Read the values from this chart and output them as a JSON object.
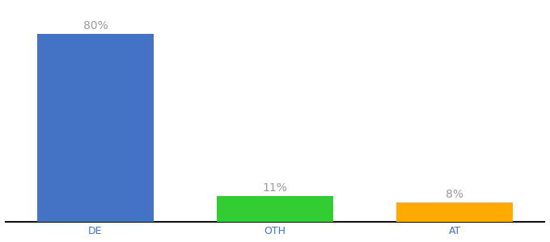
{
  "categories": [
    "DE",
    "OTH",
    "AT"
  ],
  "values": [
    80,
    11,
    8
  ],
  "bar_colors": [
    "#4472c4",
    "#33cc33",
    "#ffaa00"
  ],
  "labels": [
    "80%",
    "11%",
    "8%"
  ],
  "background_color": "#ffffff",
  "label_color": "#999999",
  "label_fontsize": 10,
  "tick_fontsize": 9,
  "bar_width": 0.65,
  "ylim": [
    0,
    92
  ],
  "xlim": [
    -0.5,
    2.5
  ],
  "figsize": [
    6.8,
    3.0
  ],
  "dpi": 100
}
